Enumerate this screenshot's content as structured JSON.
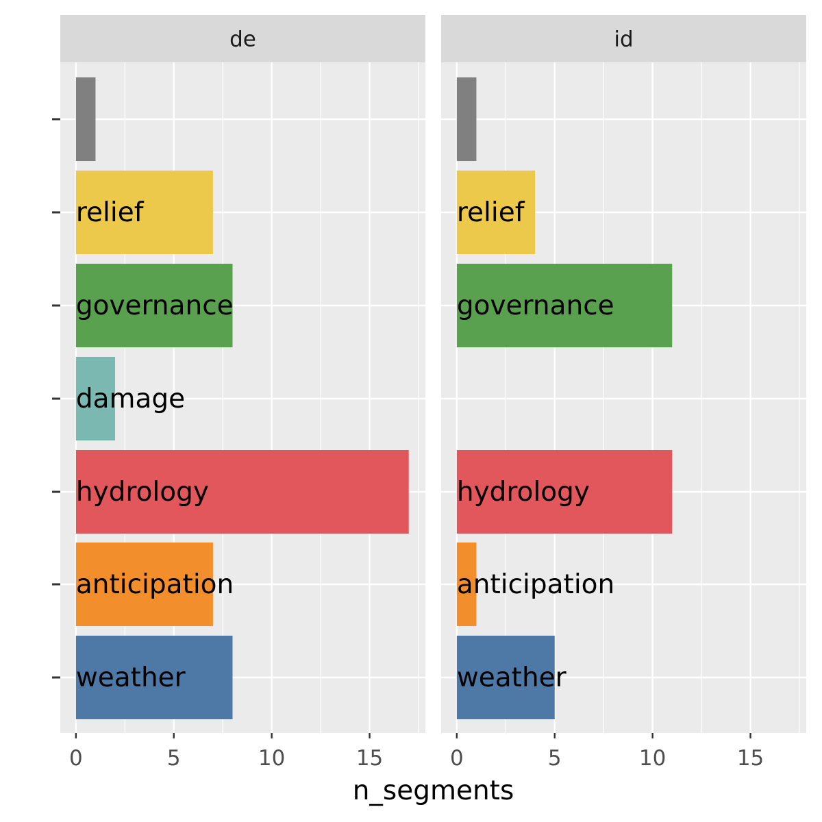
{
  "chart_data": {
    "type": "bar",
    "orientation": "horizontal",
    "facets": [
      "de",
      "id"
    ],
    "categories": [
      "",
      "relief",
      "governance",
      "damage",
      "hydrology",
      "anticipation",
      "weather"
    ],
    "category_colors": {
      "": "#808080",
      "relief": "#ECC94B",
      "governance": "#59A14F",
      "damage": "#7BB8B2",
      "hydrology": "#E2575B",
      "anticipation": "#F28E2B",
      "weather": "#4E79A7"
    },
    "series": [
      {
        "facet": "de",
        "values": [
          1,
          7,
          8,
          2,
          17,
          7,
          8
        ]
      },
      {
        "facet": "id",
        "values": [
          1,
          4,
          11,
          null,
          11,
          1,
          5
        ]
      }
    ],
    "xlabel": "n_segments",
    "ylabel": "",
    "xlim": [
      -0.8,
      17.85
    ],
    "xticks": [
      0,
      5,
      10,
      15
    ],
    "grid": true,
    "legend": "none",
    "panel_background": "#EBEBEB",
    "strip_background": "#D9D9D9"
  }
}
